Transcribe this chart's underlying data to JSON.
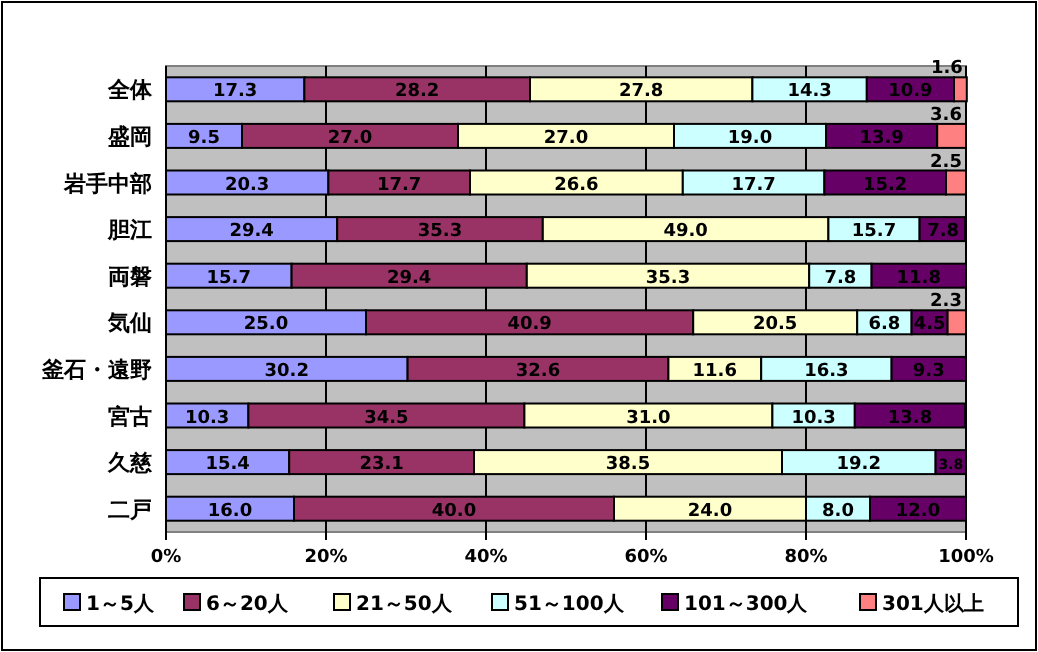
{
  "chart_data": {
    "type": "bar",
    "orientation": "horizontal",
    "stacked": true,
    "categories": [
      "全体",
      "盛岡",
      "岩手中部",
      "胆江",
      "両磐",
      "気仙",
      "釜石・遠野",
      "宮古",
      "久慈",
      "二戸"
    ],
    "series": [
      {
        "name": "1～5人",
        "color": "#9999ff",
        "values": [
          17.3,
          9.5,
          20.3,
          21.4,
          15.7,
          25.0,
          30.2,
          10.3,
          15.4,
          16.0
        ],
        "value_labels": [
          "17.3",
          "9.5",
          "20.3",
          null,
          "15.7",
          "25.0",
          "30.2",
          "10.3",
          "15.4",
          "16.0"
        ]
      },
      {
        "name": "6～20人",
        "color": "#993366",
        "values": [
          28.2,
          27.0,
          17.7,
          25.7,
          29.4,
          40.9,
          32.6,
          34.5,
          23.1,
          40.0
        ],
        "value_labels": [
          "28.2",
          "27.0",
          "17.7",
          null,
          "29.4",
          "40.9",
          "32.6",
          "34.5",
          "23.1",
          "40.0"
        ]
      },
      {
        "name": "21～50人",
        "color": "#ffffcc",
        "values": [
          27.8,
          27.0,
          26.6,
          35.7,
          35.3,
          20.5,
          11.6,
          31.0,
          38.5,
          24.0
        ],
        "value_labels": [
          "27.8",
          "27.0",
          "26.6",
          null,
          "35.3",
          "20.5",
          "11.6",
          "31.0",
          "38.5",
          "24.0"
        ]
      },
      {
        "name": "51～100人",
        "color": "#ccffff",
        "values": [
          14.3,
          19.0,
          17.7,
          11.4,
          7.8,
          6.8,
          16.3,
          10.3,
          19.2,
          8.0
        ],
        "value_labels": [
          "14.3",
          "19.0",
          "17.7",
          null,
          "7.8",
          "6.8",
          "16.3",
          "10.3",
          "19.2",
          "8.0"
        ]
      },
      {
        "name": "101～300人",
        "color": "#660066",
        "values": [
          10.9,
          13.9,
          15.2,
          5.7,
          11.8,
          4.5,
          9.3,
          13.8,
          3.8,
          12.0
        ],
        "value_labels": [
          "10.9",
          "13.9",
          "15.2",
          null,
          "11.8",
          "4.5",
          "9.3",
          "13.8",
          "3.8",
          "12.0"
        ]
      },
      {
        "name": "301人以上",
        "color": "#ff8080",
        "values": [
          1.6,
          3.6,
          2.5,
          null,
          null,
          2.3,
          null,
          null,
          null,
          null
        ],
        "value_labels": [
          "1.6",
          "3.6",
          "2.5",
          null,
          null,
          "2.3",
          null,
          null,
          null,
          null
        ]
      }
    ],
    "annotations": [
      {
        "text": "29.4",
        "x": 10.7,
        "y": "胆江"
      },
      {
        "text": "35.3",
        "x": 34.25,
        "y": "胆江"
      },
      {
        "text": "49.0",
        "x": 64.95,
        "y": "胆江"
      },
      {
        "text": "15.7",
        "x": 88.5,
        "y": "胆江"
      },
      {
        "text": "7.8",
        "x": 97.15,
        "y": "胆江"
      }
    ],
    "xlim": [
      0,
      100
    ],
    "xticks": [
      {
        "value": 0,
        "label": "0%"
      },
      {
        "value": 20,
        "label": "20%"
      },
      {
        "value": 40,
        "label": "40%"
      },
      {
        "value": 60,
        "label": "60%"
      },
      {
        "value": 80,
        "label": "80%"
      },
      {
        "value": 100,
        "label": "100%"
      }
    ],
    "grid": "x",
    "legend": "bottom"
  }
}
